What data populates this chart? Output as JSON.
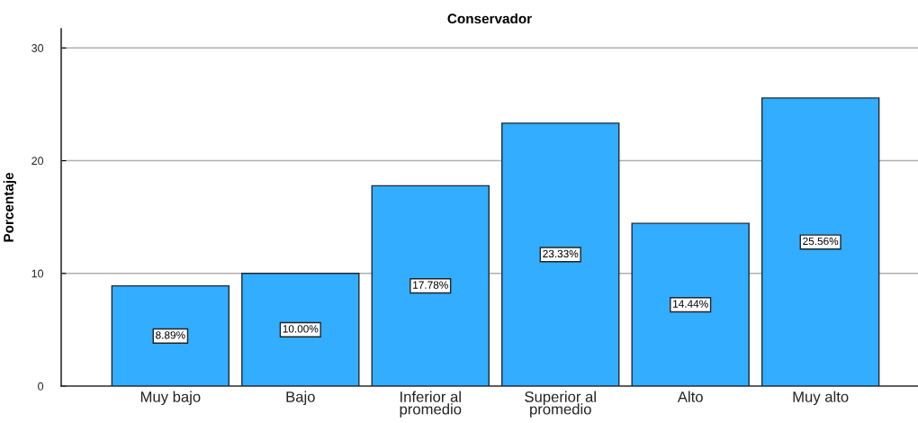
{
  "chart_data": {
    "type": "bar",
    "title": "Conservador",
    "ylabel": "Porcentaje",
    "categories": [
      "Muy bajo",
      "Bajo",
      "Inferior al promedio",
      "Superior al promedio",
      "Alto",
      "Muy alto"
    ],
    "values": [
      8.89,
      10.0,
      17.78,
      23.33,
      14.44,
      25.56
    ],
    "value_labels": [
      "8.89%",
      "10.00%",
      "17.78%",
      "23.33%",
      "14.44%",
      "25.56%"
    ],
    "color": "#33adff",
    "ylim": [
      0,
      31.7
    ],
    "yticks": [
      0,
      10,
      20,
      30
    ],
    "grid": "y"
  }
}
